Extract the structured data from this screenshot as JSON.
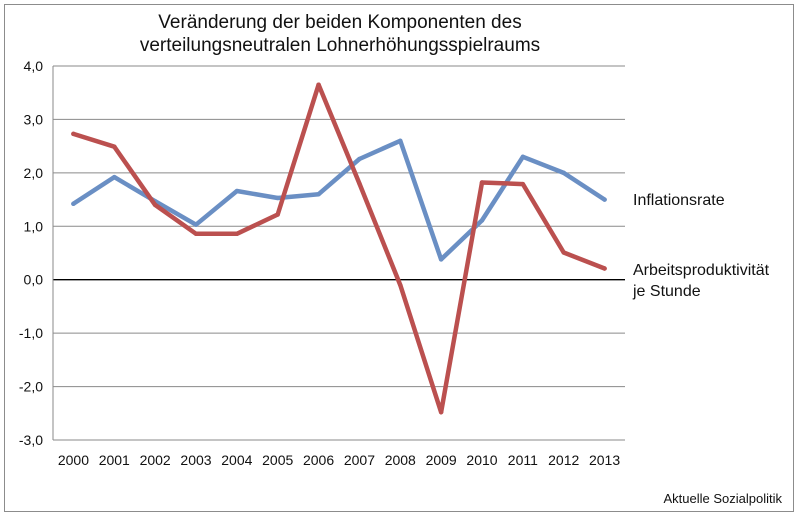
{
  "chart_data": {
    "type": "line",
    "title": [
      "Veränderung der beiden Komponenten des",
      "verteilungsneutralen Lohnerhöhungsspielraums"
    ],
    "xlabel": "",
    "ylabel": "",
    "categories": [
      "2000",
      "2001",
      "2002",
      "2003",
      "2004",
      "2005",
      "2006",
      "2007",
      "2008",
      "2009",
      "2010",
      "2011",
      "2012",
      "2013"
    ],
    "ylim": [
      -3,
      4
    ],
    "yticks": [
      "4,0",
      "3,0",
      "2,0",
      "1,0",
      "0,0",
      "-1,0",
      "-2,0",
      "-3,0"
    ],
    "ytick_values": [
      4,
      3,
      2,
      1,
      0,
      -1,
      -2,
      -3
    ],
    "grid": true,
    "legend_position": "right",
    "series": [
      {
        "name": "Inflationsrate",
        "legend_lines": [
          "Inflationsrate"
        ],
        "color": "#6a8fc4",
        "values": [
          1.42,
          1.92,
          1.47,
          1.03,
          1.66,
          1.53,
          1.6,
          2.26,
          2.6,
          0.38,
          1.11,
          2.3,
          2.0,
          1.5
        ]
      },
      {
        "name": "Arbeitsproduktivität je Stunde",
        "legend_lines": [
          "Arbeitsproduktivität",
          "je Stunde"
        ],
        "color": "#bb504f",
        "values": [
          2.73,
          2.49,
          1.4,
          0.86,
          0.86,
          1.22,
          3.65,
          1.8,
          -0.1,
          -2.48,
          1.82,
          1.79,
          0.51,
          0.21
        ]
      }
    ]
  },
  "source": "Aktuelle Sozialpolitik"
}
